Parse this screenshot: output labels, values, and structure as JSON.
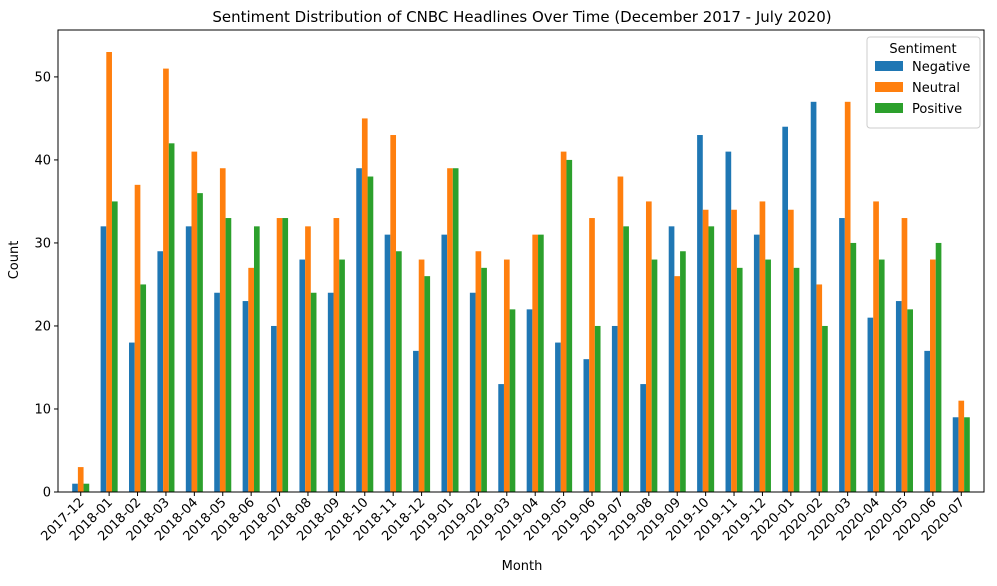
{
  "chart_data": {
    "type": "bar",
    "title": "Sentiment Distribution of CNBC Headlines Over Time (December 2017 - July 2020)",
    "xlabel": "Month",
    "ylabel": "Count",
    "ylim": [
      0,
      55.65
    ],
    "yticks": [
      0,
      10,
      20,
      30,
      40,
      50
    ],
    "grid": false,
    "legend": {
      "title": "Sentiment",
      "placement": "top-right"
    },
    "categories": [
      "2017-12",
      "2018-01",
      "2018-02",
      "2018-03",
      "2018-04",
      "2018-05",
      "2018-06",
      "2018-07",
      "2018-08",
      "2018-09",
      "2018-10",
      "2018-11",
      "2018-12",
      "2019-01",
      "2019-02",
      "2019-03",
      "2019-04",
      "2019-05",
      "2019-06",
      "2019-07",
      "2019-08",
      "2019-09",
      "2019-10",
      "2019-11",
      "2019-12",
      "2020-01",
      "2020-02",
      "2020-03",
      "2020-04",
      "2020-05",
      "2020-06",
      "2020-07"
    ],
    "series": [
      {
        "name": "Negative",
        "color": "#1f77b4",
        "values": [
          1,
          32,
          18,
          29,
          32,
          24,
          23,
          20,
          28,
          24,
          39,
          31,
          17,
          31,
          24,
          13,
          22,
          18,
          16,
          20,
          13,
          32,
          43,
          41,
          31,
          44,
          47,
          33,
          21,
          23,
          17,
          9
        ]
      },
      {
        "name": "Neutral",
        "color": "#ff7f0e",
        "values": [
          3,
          53,
          37,
          51,
          41,
          39,
          27,
          33,
          32,
          33,
          45,
          43,
          28,
          39,
          29,
          28,
          31,
          41,
          33,
          38,
          35,
          26,
          34,
          34,
          35,
          34,
          25,
          47,
          35,
          33,
          28,
          11
        ]
      },
      {
        "name": "Positive",
        "color": "#2ca02c",
        "values": [
          1,
          35,
          25,
          42,
          36,
          33,
          32,
          33,
          24,
          28,
          38,
          29,
          26,
          39,
          27,
          22,
          31,
          40,
          20,
          32,
          28,
          29,
          32,
          27,
          28,
          27,
          20,
          30,
          28,
          22,
          30,
          9
        ]
      }
    ]
  }
}
